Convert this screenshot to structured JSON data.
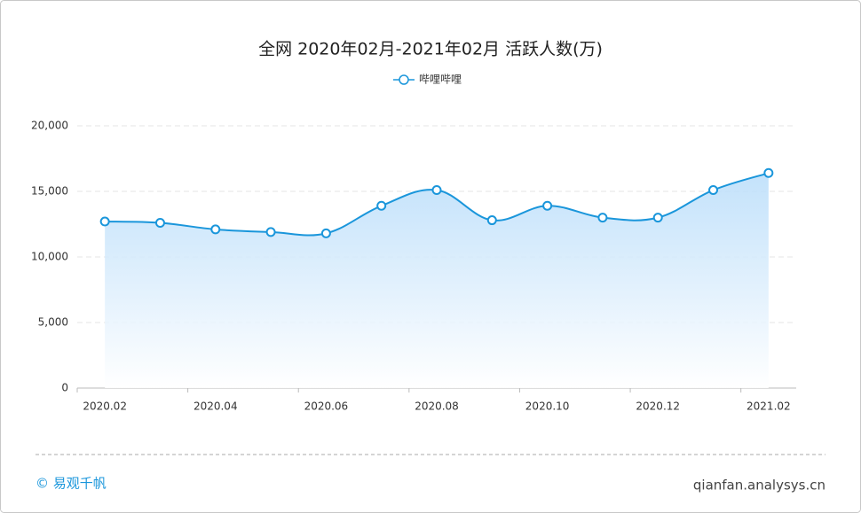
{
  "chart_data": {
    "type": "line",
    "title": "全网 2020年02月-2021年02月 活跃人数(万)",
    "categories": [
      "2020.02",
      null,
      "2020.04",
      null,
      "2020.06",
      null,
      "2020.08",
      null,
      "2020.10",
      null,
      "2020.12",
      null,
      "2021.02"
    ],
    "series": [
      {
        "name": "哔哩哔哩",
        "color": "#1a96db",
        "values": [
          12700,
          12600,
          12100,
          11900,
          11800,
          13900,
          15100,
          12800,
          13900,
          13000,
          13000,
          15100,
          16400
        ]
      }
    ],
    "ylim": [
      0,
      20000
    ],
    "yticks": [
      0,
      {
        "value": 5000,
        "label": "5,000"
      },
      {
        "value": 10000,
        "label": "10,000"
      },
      {
        "value": 15000,
        "label": "15,000"
      },
      {
        "value": 20000,
        "label": "20,000"
      }
    ],
    "grid": true,
    "legend": "top"
  },
  "footer": {
    "brand": "© 易观千帆",
    "url": "qianfan.analysys.cn"
  }
}
